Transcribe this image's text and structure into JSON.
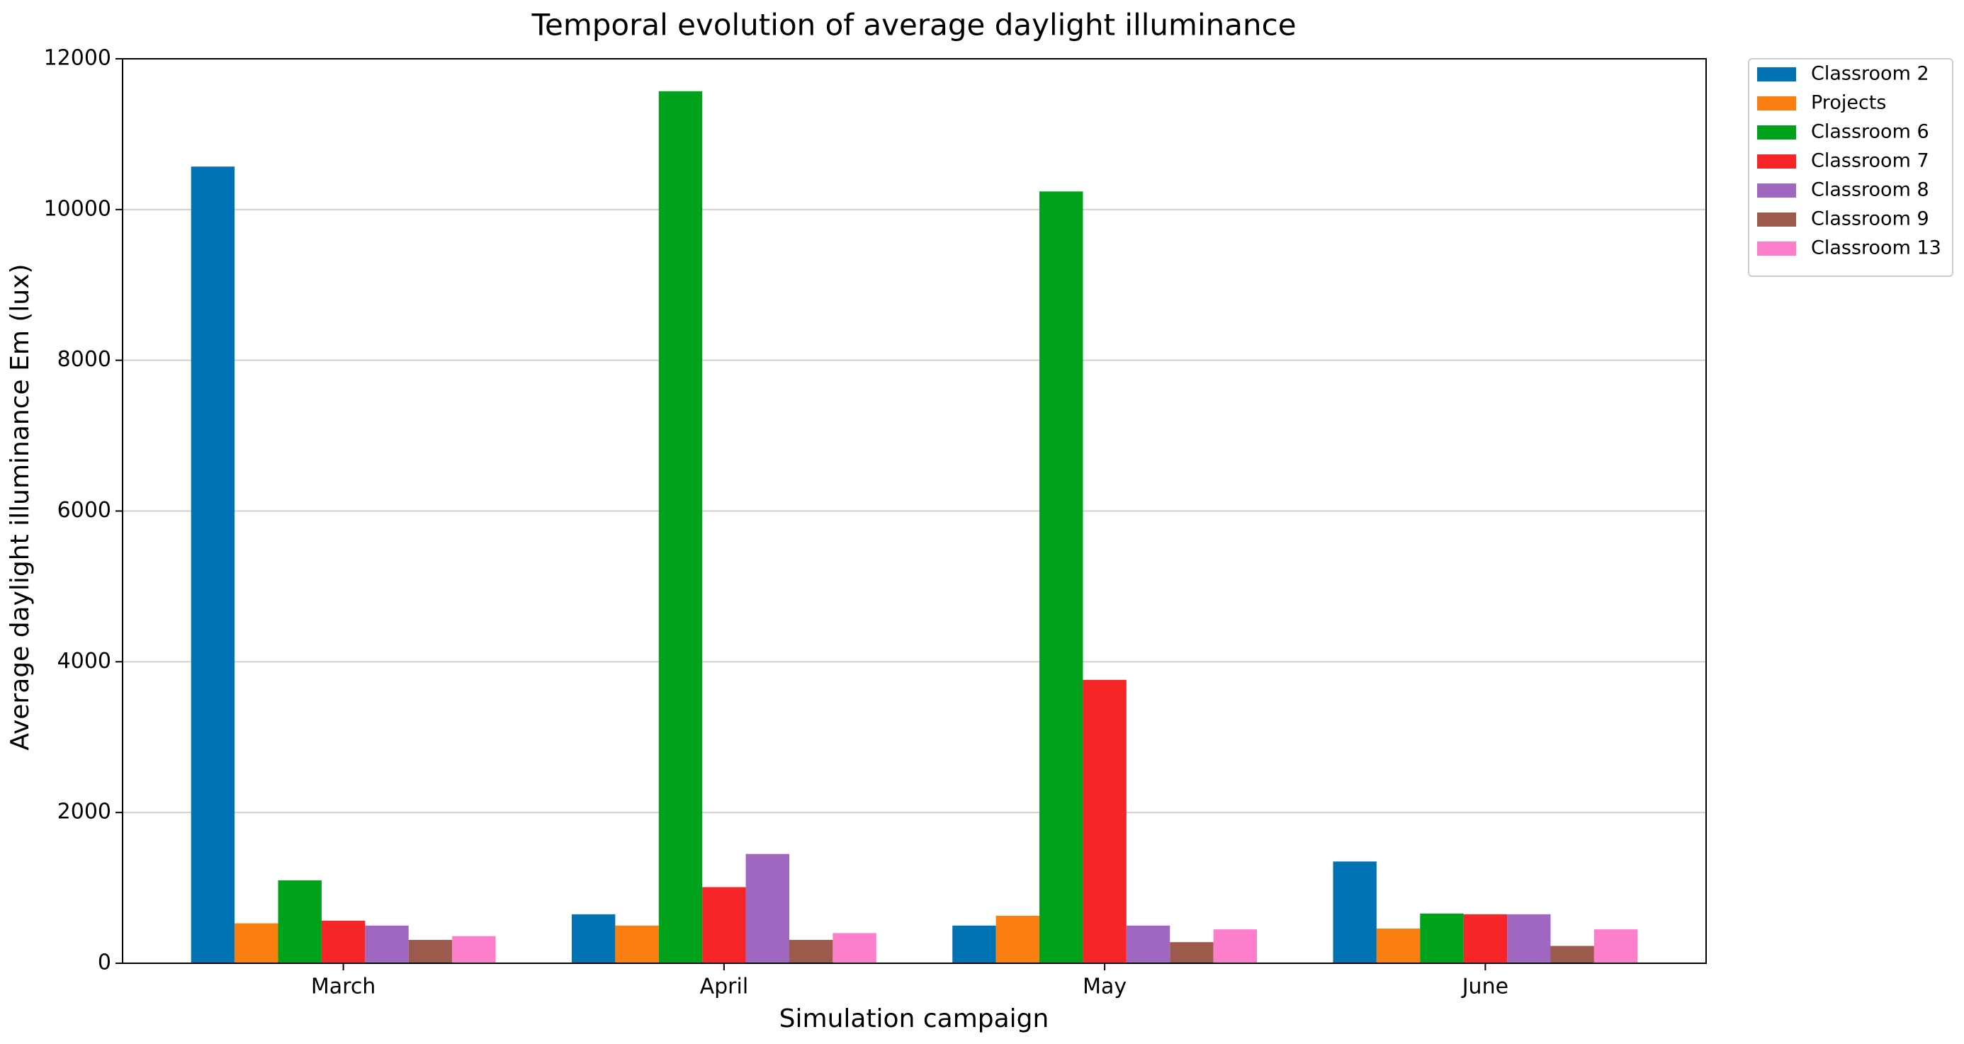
{
  "chart_data": {
    "type": "bar",
    "title": "Temporal evolution of average daylight illuminance",
    "x_label": "Simulation campaign",
    "y_label": "Average daylight illuminance Em (lux)",
    "categories": [
      "March",
      "April",
      "May",
      "June"
    ],
    "series": [
      {
        "name": "Classroom 2",
        "color": "#0173b5",
        "values": [
          10570,
          650,
          500,
          1350
        ]
      },
      {
        "name": "Projects",
        "color": "#fb7f10",
        "values": [
          530,
          500,
          630,
          460
        ]
      },
      {
        "name": "Classroom 6",
        "color": "#00a21b",
        "values": [
          1100,
          11570,
          10240,
          660
        ]
      },
      {
        "name": "Classroom 7",
        "color": "#f52528",
        "values": [
          565,
          1010,
          3760,
          650
        ]
      },
      {
        "name": "Classroom 8",
        "color": "#a067c1",
        "values": [
          500,
          1450,
          500,
          650
        ]
      },
      {
        "name": "Classroom 9",
        "color": "#9b5a4c",
        "values": [
          310,
          310,
          280,
          230
        ]
      },
      {
        "name": "Classroom 13",
        "color": "#fd7fcb",
        "values": [
          360,
          400,
          450,
          450
        ]
      }
    ],
    "ylim": [
      0,
      12000
    ],
    "yticks": [
      0,
      2000,
      4000,
      6000,
      8000,
      10000,
      12000
    ],
    "grid": true,
    "legend": "outside-upper-right"
  }
}
